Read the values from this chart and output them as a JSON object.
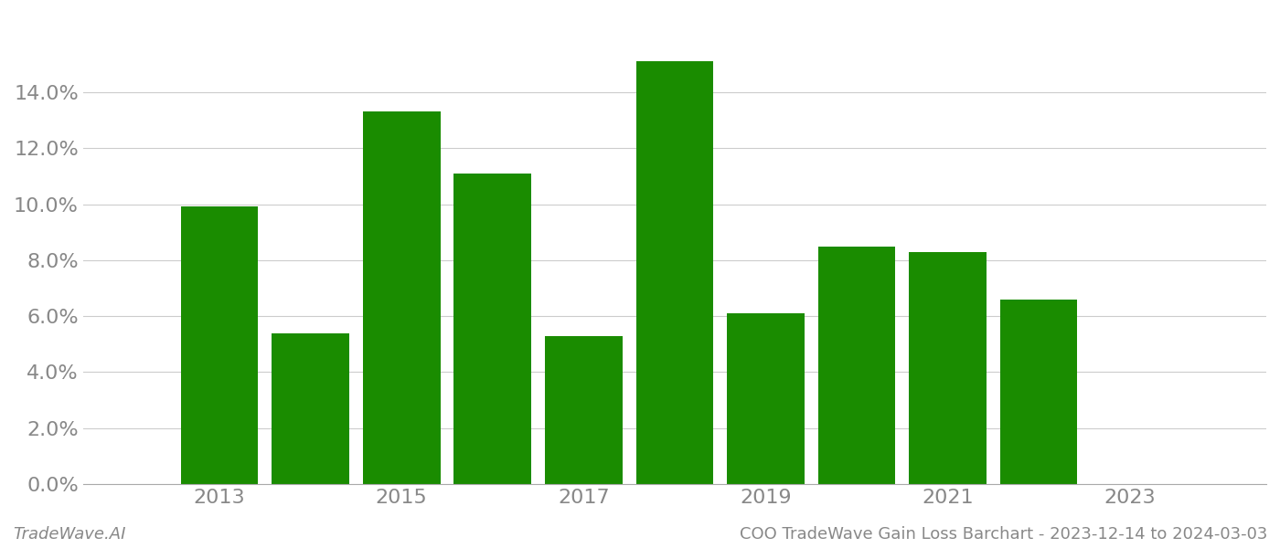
{
  "years": [
    2013,
    2014,
    2015,
    2016,
    2017,
    2018,
    2019,
    2020,
    2021,
    2022
  ],
  "values": [
    0.0993,
    0.054,
    0.133,
    0.111,
    0.053,
    0.151,
    0.061,
    0.085,
    0.083,
    0.066
  ],
  "bar_color": "#1a8c00",
  "background_color": "#ffffff",
  "ylim_min": 0.0,
  "ylim_max": 0.168,
  "ytick_values": [
    0.0,
    0.02,
    0.04,
    0.06,
    0.08,
    0.1,
    0.12,
    0.14
  ],
  "xtick_values": [
    2013,
    2015,
    2017,
    2019,
    2021,
    2023
  ],
  "xlim_min": 2011.5,
  "xlim_max": 2024.5,
  "bar_width": 0.85,
  "footer_left": "TradeWave.AI",
  "footer_right": "COO TradeWave Gain Loss Barchart - 2023-12-14 to 2024-03-03",
  "grid_color": "#cccccc",
  "tick_label_color": "#888888",
  "footer_color": "#888888",
  "tick_fontsize": 16,
  "footer_fontsize": 13
}
